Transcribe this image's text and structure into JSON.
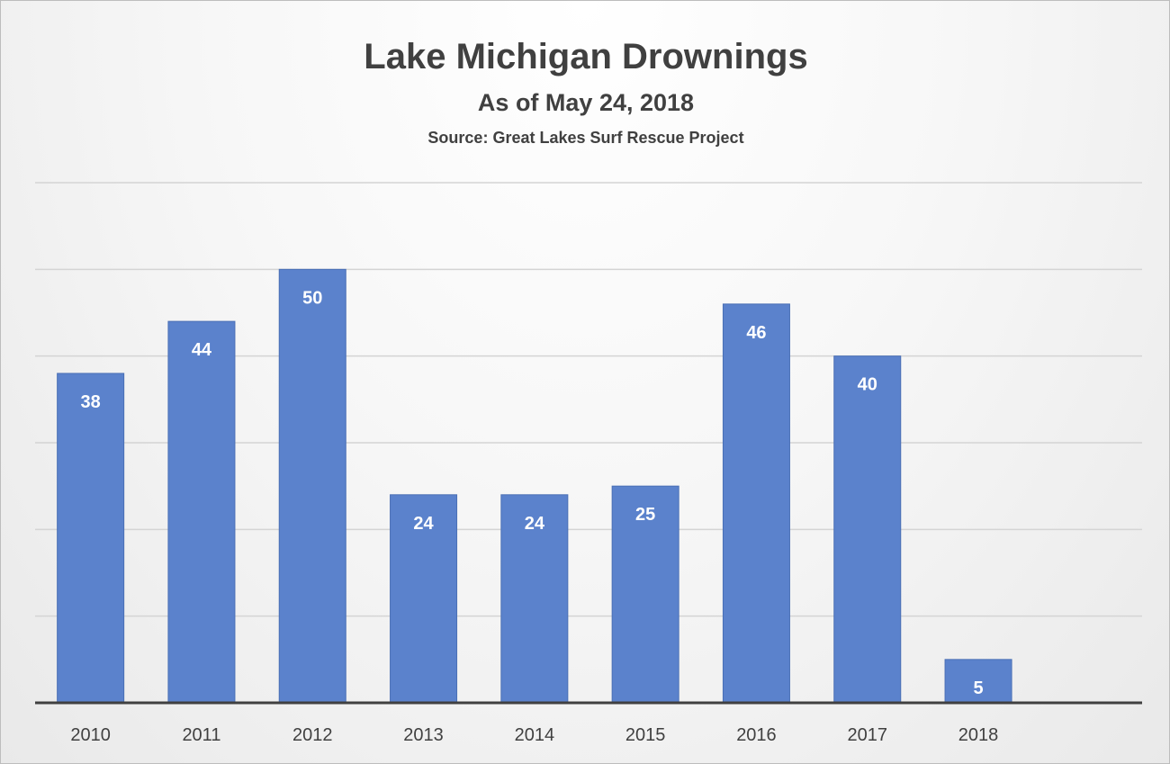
{
  "chart_data": {
    "type": "bar",
    "title": "Lake Michigan Drownings",
    "subtitle": "As of May 24, 2018",
    "source": "Source: Great Lakes Surf Rescue Project",
    "categories": [
      "2010",
      "2011",
      "2012",
      "2013",
      "2014",
      "2015",
      "2016",
      "2017",
      "2018"
    ],
    "values": [
      38,
      44,
      50,
      24,
      24,
      25,
      46,
      40,
      5
    ],
    "ylim": [
      0,
      60
    ],
    "grid": true,
    "y_tick_labels_shown": false,
    "data_labels": "inside-end",
    "colors": {
      "bar": "#5b82cc",
      "bar_edge": "#4a6fb5",
      "label": "#ffffff",
      "axis": "#404040",
      "grid": "#d4d4d4"
    }
  }
}
